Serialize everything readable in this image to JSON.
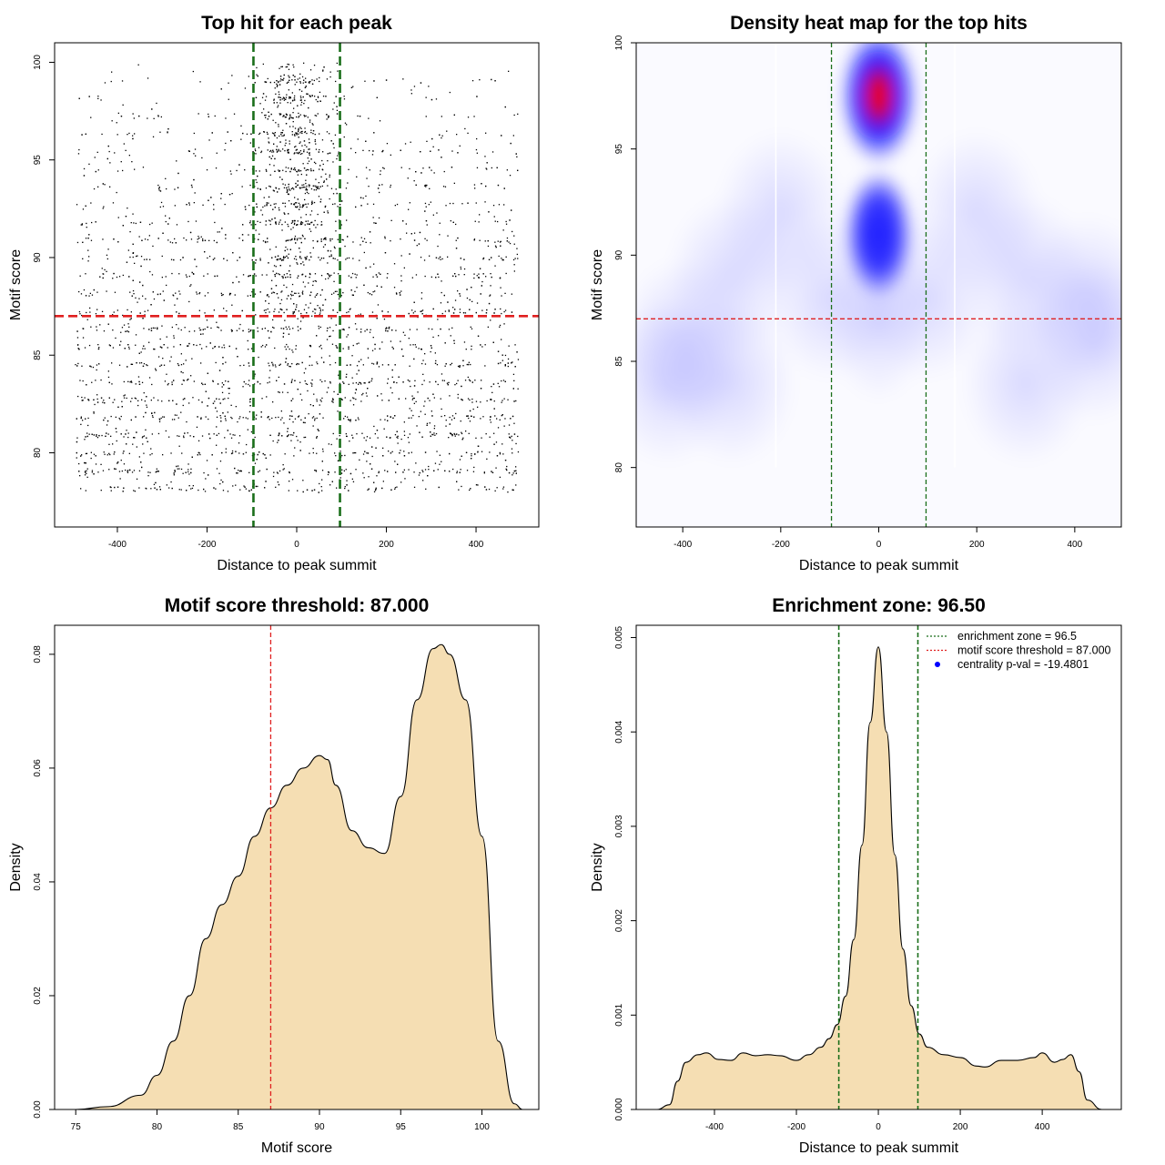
{
  "chart_data": [
    {
      "type": "scatter",
      "title": "Top hit for each peak",
      "xlabel": "Distance to peak summit",
      "ylabel": "Motif score",
      "xlim": [
        -540,
        540
      ],
      "ylim": [
        76.2,
        101
      ],
      "xticks": [
        -400,
        -200,
        0,
        200,
        400
      ],
      "yticks": [
        80,
        85,
        90,
        95,
        100
      ],
      "hlines": [
        {
          "y": 87,
          "color": "#e02020",
          "style": "dashed"
        }
      ],
      "vlines": [
        {
          "x": -96.5,
          "color": "#1a6e1a",
          "style": "dashed"
        },
        {
          "x": 96.5,
          "color": "#1a6e1a",
          "style": "dashed"
        }
      ],
      "point_color": "#000000"
    },
    {
      "type": "heatmap",
      "title": "Density heat map for the top hits",
      "xlabel": "Distance to peak summit",
      "ylabel": "Motif score",
      "xlim": [
        -495,
        495
      ],
      "ylim": [
        77.2,
        100
      ],
      "xticks": [
        -400,
        -200,
        0,
        200,
        400
      ],
      "yticks": [
        80,
        85,
        90,
        95,
        100
      ],
      "peak": {
        "x": 0,
        "y": 97.5
      },
      "colors": {
        "low": "#ffffff",
        "mid": "#0000ff",
        "high": "#ff0000"
      },
      "hlines": [
        {
          "y": 87,
          "color": "#e02020",
          "style": "dashed"
        }
      ],
      "vlines": [
        {
          "x": -96.5,
          "color": "#1a6e1a",
          "style": "dashed"
        },
        {
          "x": 96.5,
          "color": "#1a6e1a",
          "style": "dashed"
        }
      ]
    },
    {
      "type": "area",
      "title": "Motif score threshold: 87.000",
      "xlabel": "Motif score",
      "ylabel": "Density",
      "xlim": [
        73.7,
        103.5
      ],
      "ylim": [
        0,
        0.0851
      ],
      "xticks": [
        75,
        80,
        85,
        90,
        95,
        100
      ],
      "yticks": [
        0.0,
        0.02,
        0.04,
        0.06,
        0.08
      ],
      "ytick_labels": [
        "0.00",
        "0.02",
        "0.04",
        "0.06",
        "0.08"
      ],
      "fill": "#f5deb3",
      "x": [
        75,
        77,
        79,
        80,
        81,
        82,
        83,
        84,
        85,
        86,
        87,
        88,
        89,
        90,
        90.5,
        91,
        92,
        93,
        94,
        95,
        96,
        97,
        97.5,
        98,
        99,
        100,
        101,
        102,
        102.5
      ],
      "y": [
        0,
        0.0005,
        0.0025,
        0.006,
        0.012,
        0.02,
        0.03,
        0.036,
        0.041,
        0.048,
        0.053,
        0.057,
        0.06,
        0.0622,
        0.0615,
        0.057,
        0.049,
        0.046,
        0.045,
        0.055,
        0.072,
        0.081,
        0.0817,
        0.08,
        0.072,
        0.048,
        0.012,
        0.001,
        0
      ],
      "vlines": [
        {
          "x": 87,
          "color": "#e02020",
          "style": "dashed"
        }
      ]
    },
    {
      "type": "area",
      "title": "Enrichment zone: 96.50",
      "xlabel": "Distance to peak summit",
      "ylabel": "Density",
      "xlim": [
        -591,
        593
      ],
      "ylim": [
        0,
        0.00513
      ],
      "xticks": [
        -400,
        -200,
        0,
        200,
        400
      ],
      "yticks": [
        0,
        0.001,
        0.002,
        0.003,
        0.004,
        0.005
      ],
      "ytick_labels": [
        "0.000",
        "0.001",
        "0.002",
        "0.003",
        "0.004",
        "0.005"
      ],
      "fill": "#f5deb3",
      "x": [
        -540,
        -510,
        -490,
        -470,
        -440,
        -420,
        -390,
        -360,
        -330,
        -300,
        -270,
        -240,
        -200,
        -170,
        -140,
        -120,
        -100,
        -80,
        -60,
        -40,
        -20,
        0,
        20,
        40,
        60,
        80,
        100,
        120,
        160,
        200,
        240,
        260,
        300,
        340,
        380,
        400,
        430,
        450,
        470,
        490,
        510,
        545
      ],
      "y": [
        0,
        5e-05,
        0.0003,
        0.0005,
        0.00058,
        0.0006,
        0.00053,
        0.00052,
        0.0006,
        0.00057,
        0.00058,
        0.00057,
        0.00052,
        0.00058,
        0.00066,
        0.00075,
        0.0009,
        0.0012,
        0.0018,
        0.0028,
        0.0041,
        0.0049,
        0.004,
        0.0027,
        0.0017,
        0.0011,
        0.0008,
        0.00066,
        0.00058,
        0.00055,
        0.00046,
        0.00045,
        0.00052,
        0.00052,
        0.00055,
        0.0006,
        0.0005,
        0.00053,
        0.00058,
        0.0004,
        0.0001,
        0
      ],
      "vlines": [
        {
          "x": -96.5,
          "color": "#1a6e1a",
          "style": "dashed"
        },
        {
          "x": 96.5,
          "color": "#1a6e1a",
          "style": "dashed"
        }
      ],
      "legend": [
        {
          "label": "enrichment zone = 96.5",
          "color": "#1a6e1a",
          "marker": "dotted-line"
        },
        {
          "label": "motif score threshold = 87.000",
          "color": "#e02020",
          "marker": "dotted-line"
        },
        {
          "label": "centrality p-val = -19.4801",
          "color": "#0000ff",
          "marker": "dot"
        }
      ],
      "legend_position": "top-right"
    }
  ]
}
